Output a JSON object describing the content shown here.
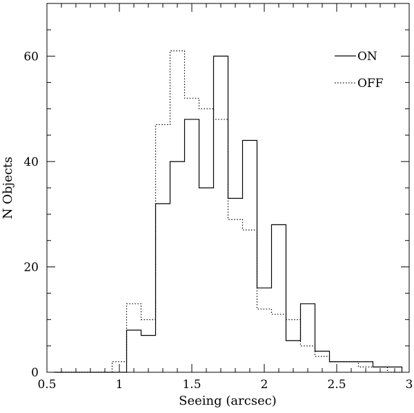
{
  "chart_data": {
    "type": "histogram",
    "xlabel": "Seeing (arcsec)",
    "ylabel": "N Objects",
    "xlim": [
      0.5,
      3.0
    ],
    "ylim": [
      0,
      70
    ],
    "x_ticks": [
      "0.5",
      "1",
      "1.5",
      "2",
      "2.5",
      "3"
    ],
    "y_ticks": [
      "0",
      "20",
      "40",
      "60"
    ],
    "bin_edges": [
      0.55,
      0.65,
      0.75,
      0.85,
      0.95,
      1.05,
      1.15,
      1.25,
      1.35,
      1.45,
      1.55,
      1.65,
      1.75,
      1.85,
      1.95,
      2.05,
      2.15,
      2.25,
      2.35,
      2.45,
      2.55,
      2.65,
      2.75,
      2.85,
      2.95
    ],
    "series": [
      {
        "name": "ON",
        "line_style": "solid",
        "values": [
          0,
          0,
          0,
          0,
          0,
          8,
          7,
          32,
          40,
          48,
          35,
          60,
          33,
          44,
          16,
          28,
          6,
          13,
          4,
          2,
          2,
          2,
          1,
          1
        ]
      },
      {
        "name": "OFF",
        "line_style": "dotted",
        "values": [
          0,
          0,
          0,
          0,
          2,
          13,
          10,
          47,
          61,
          52,
          50,
          48,
          29,
          27,
          12,
          11,
          10,
          5,
          3,
          2,
          2,
          1,
          1,
          0
        ]
      }
    ],
    "legend": {
      "placement": "top-right"
    },
    "grid": false
  }
}
